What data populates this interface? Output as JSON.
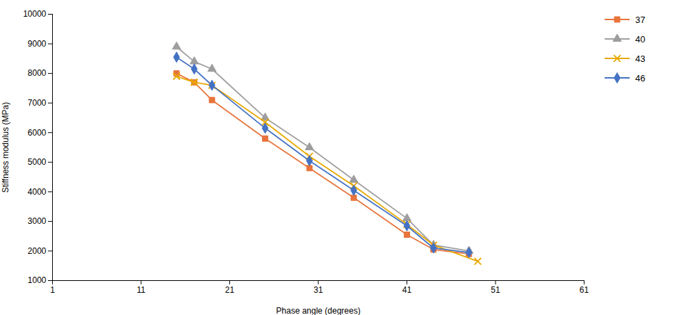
{
  "chart_data": {
    "type": "line",
    "xlabel": "Phase angle (degrees)",
    "ylabel": "Stiffness modulus (MPa)",
    "xlim": [
      1,
      61
    ],
    "ylim": [
      1000,
      10000
    ],
    "xticks": [
      1,
      11,
      21,
      31,
      41,
      51,
      61
    ],
    "yticks": [
      1000,
      2000,
      3000,
      4000,
      5000,
      6000,
      7000,
      8000,
      9000,
      10000
    ],
    "grid": false,
    "legend": "right",
    "series": [
      {
        "name": "37",
        "color": "#E8743B",
        "marker": "square",
        "x": [
          15,
          17,
          19,
          25,
          30,
          35,
          41,
          44,
          48
        ],
        "values": [
          8000,
          7700,
          7100,
          5800,
          4800,
          3800,
          2550,
          2050,
          1900
        ]
      },
      {
        "name": "40",
        "color": "#9E9E9E",
        "marker": "triangle",
        "x": [
          15,
          17,
          19,
          25,
          30,
          35,
          41,
          44,
          48
        ],
        "values": [
          8900,
          8400,
          8150,
          6500,
          5500,
          4400,
          3100,
          2200,
          2000
        ]
      },
      {
        "name": "43",
        "color": "#E8A800",
        "marker": "x",
        "x": [
          15,
          17,
          19,
          25,
          30,
          35,
          41,
          44,
          49
        ],
        "values": [
          7900,
          7700,
          7600,
          6350,
          5200,
          4200,
          2900,
          2200,
          1650
        ]
      },
      {
        "name": "46",
        "color": "#4472C4",
        "marker": "diamond",
        "x": [
          15,
          17,
          19,
          25,
          30,
          35,
          41,
          44,
          48
        ],
        "values": [
          8550,
          8150,
          7600,
          6150,
          5050,
          4050,
          2850,
          2100,
          1950
        ]
      }
    ]
  }
}
